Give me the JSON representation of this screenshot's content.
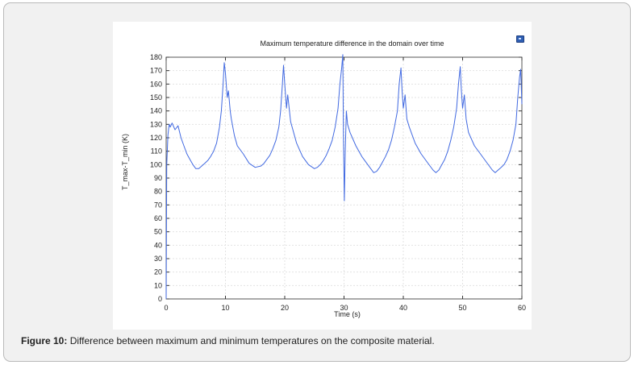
{
  "caption": {
    "label": "Figure 10:",
    "text": " Difference between maximum and minimum temperatures on the composite material."
  },
  "chart_data": {
    "type": "line",
    "title": "Maximum temperature difference in the domain over time",
    "xlabel": "Time (s)",
    "ylabel": "T_max-T_min (K)",
    "xlim": [
      0,
      60
    ],
    "ylim": [
      0,
      180
    ],
    "xticks": [
      0,
      10,
      20,
      30,
      40,
      50,
      60
    ],
    "yticks": [
      0,
      10,
      20,
      30,
      40,
      50,
      60,
      70,
      80,
      90,
      100,
      110,
      120,
      130,
      140,
      150,
      160,
      170,
      180
    ],
    "grid": true,
    "line_color": "#4169e1",
    "series": [
      {
        "x": [
          0,
          0.1,
          0.3,
          0.5,
          0.7,
          1,
          1.5,
          2,
          2.5,
          3,
          3.5,
          4,
          4.5,
          5,
          5.5,
          6,
          6.5,
          7,
          7.5,
          8,
          8.5,
          9,
          9.3,
          9.6,
          9.8,
          10,
          10.3,
          10.5,
          10.8,
          11,
          11.5,
          12,
          13,
          14,
          15,
          16,
          16.5,
          17,
          17.5,
          18,
          18.5,
          19,
          19.3,
          19.6,
          19.8,
          20,
          20.3,
          20.5,
          21,
          22,
          23,
          24,
          25,
          25.5,
          26,
          26.5,
          27,
          27.5,
          28,
          28.5,
          29,
          29.3,
          29.6,
          29.8,
          29.9,
          30.05,
          30.2,
          30.4,
          30.6,
          31,
          32,
          33,
          34,
          35,
          35.5,
          36,
          36.5,
          37,
          37.5,
          38,
          38.5,
          39,
          39.3,
          39.6,
          39.8,
          40,
          40.3,
          40.6,
          41,
          42,
          43,
          44,
          45,
          45.5,
          46,
          46.5,
          47,
          47.5,
          48,
          48.5,
          49,
          49.3,
          49.6,
          49.8,
          50,
          50.3,
          50.6,
          51,
          52,
          53,
          54,
          55,
          55.5,
          56,
          56.5,
          57,
          57.5,
          58,
          58.5,
          59,
          59.3,
          59.6,
          59.8,
          60
        ],
        "y": [
          0,
          100,
          122,
          130,
          128,
          131,
          126,
          129,
          120,
          114,
          108,
          104,
          100,
          97,
          97,
          99,
          101,
          103,
          106,
          110,
          116,
          128,
          140,
          160,
          176,
          168,
          150,
          155,
          140,
          134,
          122,
          114,
          108,
          101,
          98,
          99,
          101,
          104,
          107,
          112,
          118,
          128,
          140,
          160,
          174,
          160,
          142,
          152,
          132,
          116,
          106,
          100,
          97,
          98,
          100,
          103,
          107,
          112,
          118,
          128,
          142,
          160,
          172,
          182,
          120,
          73,
          110,
          140,
          130,
          124,
          114,
          106,
          100,
          94,
          95,
          98,
          102,
          106,
          111,
          118,
          128,
          140,
          160,
          172,
          155,
          142,
          152,
          134,
          128,
          116,
          108,
          102,
          96,
          94,
          96,
          100,
          104,
          110,
          118,
          128,
          142,
          160,
          173,
          155,
          142,
          152,
          134,
          124,
          114,
          108,
          102,
          96,
          94,
          96,
          98,
          100,
          104,
          110,
          118,
          130,
          150,
          165,
          171,
          145
        ]
      }
    ]
  }
}
